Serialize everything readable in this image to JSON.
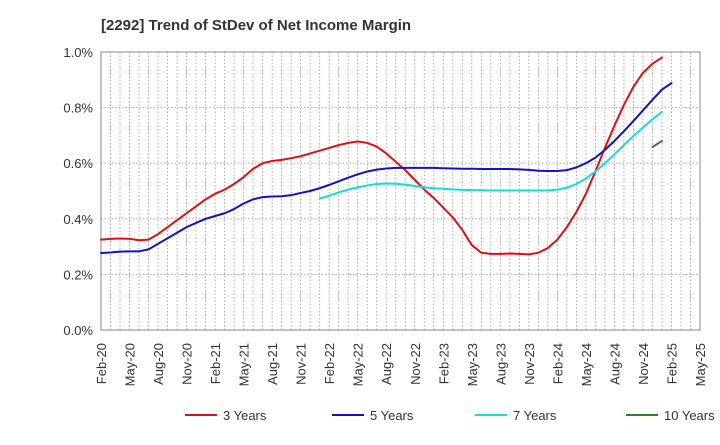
{
  "chart_data": {
    "type": "line",
    "title": "[2292]  Trend of StDev of Net Income Margin",
    "x_tick_labels": [
      "Feb-20",
      "May-20",
      "Aug-20",
      "Nov-20",
      "Feb-21",
      "May-21",
      "Aug-21",
      "Nov-21",
      "Feb-22",
      "May-22",
      "Aug-22",
      "Nov-22",
      "Feb-23",
      "May-23",
      "Aug-23",
      "Nov-23",
      "Feb-24",
      "May-24",
      "Aug-24",
      "Nov-24",
      "Feb-25",
      "May-25"
    ],
    "y_tick_labels": [
      "0.0%",
      "0.2%",
      "0.4%",
      "0.6%",
      "0.8%",
      "1.0%"
    ],
    "ylim": [
      0,
      1.0
    ],
    "grid": true,
    "legend_position": "bottom",
    "series": [
      {
        "name": "3 Years",
        "color": "#dd1111",
        "start_index": 0,
        "values": [
          0.325,
          0.328,
          0.329,
          0.328,
          0.323,
          0.325,
          0.345,
          0.37,
          0.395,
          0.42,
          0.445,
          0.47,
          0.49,
          0.505,
          0.525,
          0.55,
          0.58,
          0.6,
          0.608,
          0.612,
          0.618,
          0.625,
          0.635,
          0.645,
          0.655,
          0.665,
          0.673,
          0.678,
          0.673,
          0.66,
          0.635,
          0.605,
          0.575,
          0.54,
          0.505,
          0.475,
          0.44,
          0.405,
          0.36,
          0.305,
          0.278,
          0.274,
          0.274,
          0.275,
          0.274,
          0.272,
          0.278,
          0.295,
          0.325,
          0.37,
          0.425,
          0.49,
          0.57,
          0.655,
          0.735,
          0.81,
          0.875,
          0.925,
          0.958,
          0.98
        ]
      },
      {
        "name": "5 Years",
        "color": "#1111cc",
        "start_index": 0,
        "values": [
          0.277,
          0.279,
          0.282,
          0.283,
          0.283,
          0.29,
          0.31,
          0.33,
          0.35,
          0.37,
          0.385,
          0.4,
          0.41,
          0.42,
          0.435,
          0.455,
          0.47,
          0.478,
          0.48,
          0.481,
          0.485,
          0.493,
          0.5,
          0.51,
          0.522,
          0.535,
          0.548,
          0.56,
          0.57,
          0.577,
          0.581,
          0.583,
          0.583,
          0.583,
          0.583,
          0.583,
          0.582,
          0.581,
          0.58,
          0.58,
          0.579,
          0.579,
          0.579,
          0.579,
          0.578,
          0.576,
          0.573,
          0.572,
          0.572,
          0.575,
          0.585,
          0.6,
          0.62,
          0.648,
          0.68,
          0.715,
          0.752,
          0.79,
          0.828,
          0.865,
          0.888
        ]
      },
      {
        "name": "7 Years",
        "color": "#11dddd",
        "start_index": 23,
        "values": [
          0.473,
          0.483,
          0.495,
          0.505,
          0.513,
          0.52,
          0.525,
          0.527,
          0.526,
          0.523,
          0.518,
          0.513,
          0.51,
          0.508,
          0.506,
          0.504,
          0.503,
          0.503,
          0.502,
          0.502,
          0.502,
          0.502,
          0.502,
          0.502,
          0.502,
          0.505,
          0.512,
          0.525,
          0.545,
          0.57,
          0.6,
          0.632,
          0.665,
          0.698,
          0.728,
          0.758,
          0.785
        ]
      },
      {
        "name": "10 Years",
        "color": "#228822",
        "start_index": 58,
        "values": [
          0.658,
          0.68
        ]
      }
    ]
  }
}
